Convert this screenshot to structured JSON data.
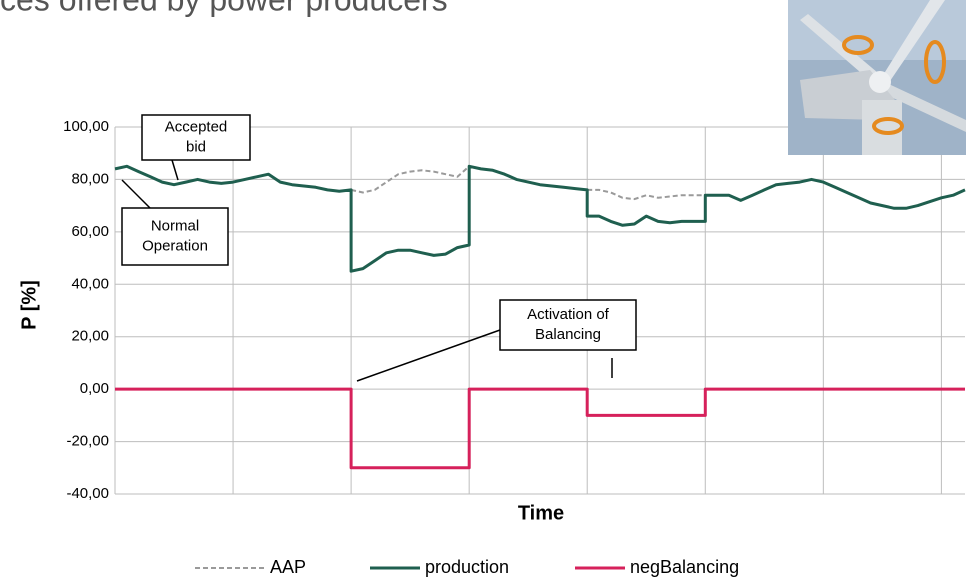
{
  "chart_data": {
    "type": "line",
    "title": "ces offered by power producers",
    "xlabel": "Time",
    "ylabel": "P [%]",
    "x": [
      0,
      0.1,
      0.2,
      0.3,
      0.4,
      0.5,
      0.6,
      0.7,
      0.8,
      0.9,
      1.0,
      1.1,
      1.2,
      1.3,
      1.4,
      1.5,
      1.6,
      1.7,
      1.8,
      1.9,
      2.0,
      2.0,
      2.1,
      2.2,
      2.3,
      2.4,
      2.5,
      2.6,
      2.7,
      2.8,
      2.9,
      3.0,
      3.0,
      3.1,
      3.2,
      3.3,
      3.4,
      3.5,
      3.6,
      3.7,
      3.8,
      3.9,
      4.0,
      4.0,
      4.1,
      4.2,
      4.3,
      4.4,
      4.5,
      4.6,
      4.7,
      4.8,
      4.9,
      5.0,
      5.0,
      5.1,
      5.2,
      5.3,
      5.4,
      5.5,
      5.6,
      5.7,
      5.8,
      5.9,
      6.0,
      6.1,
      6.2,
      6.3,
      6.4,
      6.5,
      6.6,
      6.7,
      6.8,
      6.9,
      7.0,
      7.1,
      7.2
    ],
    "series": [
      {
        "name": "AAP",
        "color": "#9a9a9a",
        "dashed": true,
        "values": [
          null,
          null,
          null,
          null,
          null,
          null,
          null,
          null,
          null,
          null,
          null,
          null,
          null,
          null,
          null,
          null,
          null,
          null,
          null,
          null,
          76,
          76,
          75,
          76,
          79,
          82,
          83,
          83.5,
          83,
          82,
          81,
          85,
          85,
          null,
          null,
          null,
          null,
          null,
          null,
          null,
          null,
          null,
          76,
          76,
          76,
          75,
          73,
          72.5,
          74,
          73,
          73.5,
          74,
          74,
          74,
          74,
          null,
          null,
          null,
          null,
          null,
          null,
          null,
          null,
          null,
          null,
          null,
          null,
          null,
          null,
          null,
          null,
          null,
          null,
          null,
          null,
          null,
          null
        ]
      },
      {
        "name": "production",
        "color": "#1f5f4f",
        "values": [
          84,
          85,
          83,
          81,
          79,
          78,
          79,
          80,
          79,
          78.5,
          79,
          80,
          81,
          82,
          79,
          78,
          77.5,
          77,
          76,
          75.5,
          76,
          45,
          46,
          49,
          52,
          53,
          53,
          52,
          51,
          51.5,
          54,
          55,
          85,
          84,
          83.5,
          82,
          80,
          79,
          78,
          77.5,
          77,
          76.5,
          76,
          66,
          66,
          64,
          62.5,
          63,
          66,
          64,
          63.5,
          64,
          64,
          64,
          74,
          74,
          74,
          72,
          74,
          76,
          78,
          78.5,
          79,
          80,
          79,
          77,
          75,
          73,
          71,
          70,
          69,
          69,
          70,
          71.5,
          73,
          74,
          76
        ]
      },
      {
        "name": "negBalancing",
        "color": "#d6215b",
        "x": [
          0,
          2,
          2,
          3,
          3,
          4,
          4,
          5,
          5,
          7.2
        ],
        "values": [
          0,
          0,
          -30,
          -30,
          0,
          0,
          -10,
          -10,
          0,
          0
        ]
      }
    ],
    "xlim": [
      0,
      7.2
    ],
    "xticks": [
      0,
      1,
      2,
      3,
      4,
      5,
      6,
      7
    ],
    "ylim": [
      -40,
      100
    ],
    "yticks": [
      {
        "value": -40,
        "label": "-40,00"
      },
      {
        "value": -20,
        "label": "-20,00"
      },
      {
        "value": 0,
        "label": "0,00"
      },
      {
        "value": 20,
        "label": "20,00"
      },
      {
        "value": 40,
        "label": "40,00"
      },
      {
        "value": 60,
        "label": "60,00"
      },
      {
        "value": 80,
        "label": "80,00"
      },
      {
        "value": 100,
        "label": "100,00"
      }
    ],
    "grid": true,
    "annotations": [
      {
        "lines": [
          "Accepted",
          "bid"
        ]
      },
      {
        "lines": [
          "Normal",
          "Operation"
        ]
      },
      {
        "lines": [
          "Activation of",
          "Balancing"
        ]
      }
    ]
  }
}
